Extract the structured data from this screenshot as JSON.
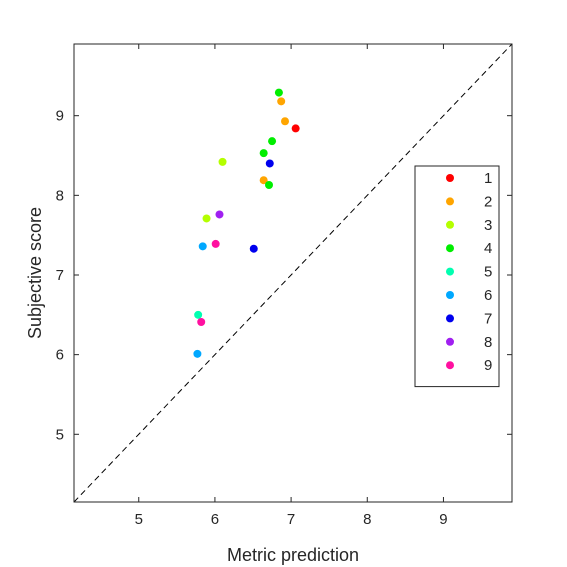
{
  "chart_data": {
    "type": "scatter",
    "title": "",
    "xlabel": "Metric prediction",
    "ylabel": "Subjective score",
    "xlim": [
      4.15,
      9.9
    ],
    "ylim": [
      4.15,
      9.9
    ],
    "xticks": [
      5,
      6,
      7,
      8,
      9
    ],
    "yticks": [
      5,
      6,
      7,
      8,
      9
    ],
    "grid": false,
    "reference_line": "y = x (dashed)",
    "legend_position": "right",
    "series": [
      {
        "name": "1",
        "color": "#ff0000",
        "points": [
          {
            "x": 7.06,
            "y": 8.84
          }
        ]
      },
      {
        "name": "2",
        "color": "#ffa500",
        "points": [
          {
            "x": 6.87,
            "y": 9.18
          },
          {
            "x": 6.92,
            "y": 8.93
          },
          {
            "x": 6.64,
            "y": 8.19
          }
        ]
      },
      {
        "name": "3",
        "color": "#b4ff00",
        "points": [
          {
            "x": 6.1,
            "y": 8.42
          },
          {
            "x": 5.89,
            "y": 7.71
          }
        ]
      },
      {
        "name": "4",
        "color": "#00ee00",
        "points": [
          {
            "x": 6.84,
            "y": 9.29
          },
          {
            "x": 6.75,
            "y": 8.68
          },
          {
            "x": 6.64,
            "y": 8.53
          },
          {
            "x": 6.71,
            "y": 8.13
          }
        ]
      },
      {
        "name": "5",
        "color": "#00ffb0",
        "points": [
          {
            "x": 5.78,
            "y": 6.5
          }
        ]
      },
      {
        "name": "6",
        "color": "#00a8ff",
        "points": [
          {
            "x": 5.84,
            "y": 7.36
          },
          {
            "x": 5.77,
            "y": 6.01
          }
        ]
      },
      {
        "name": "7",
        "color": "#0000ee",
        "points": [
          {
            "x": 6.72,
            "y": 8.4
          },
          {
            "x": 6.51,
            "y": 7.33
          }
        ]
      },
      {
        "name": "8",
        "color": "#a020f0",
        "points": [
          {
            "x": 6.06,
            "y": 7.76
          }
        ]
      },
      {
        "name": "9",
        "color": "#ff10a0",
        "points": [
          {
            "x": 6.01,
            "y": 7.39
          },
          {
            "x": 5.82,
            "y": 6.41
          }
        ]
      }
    ]
  }
}
